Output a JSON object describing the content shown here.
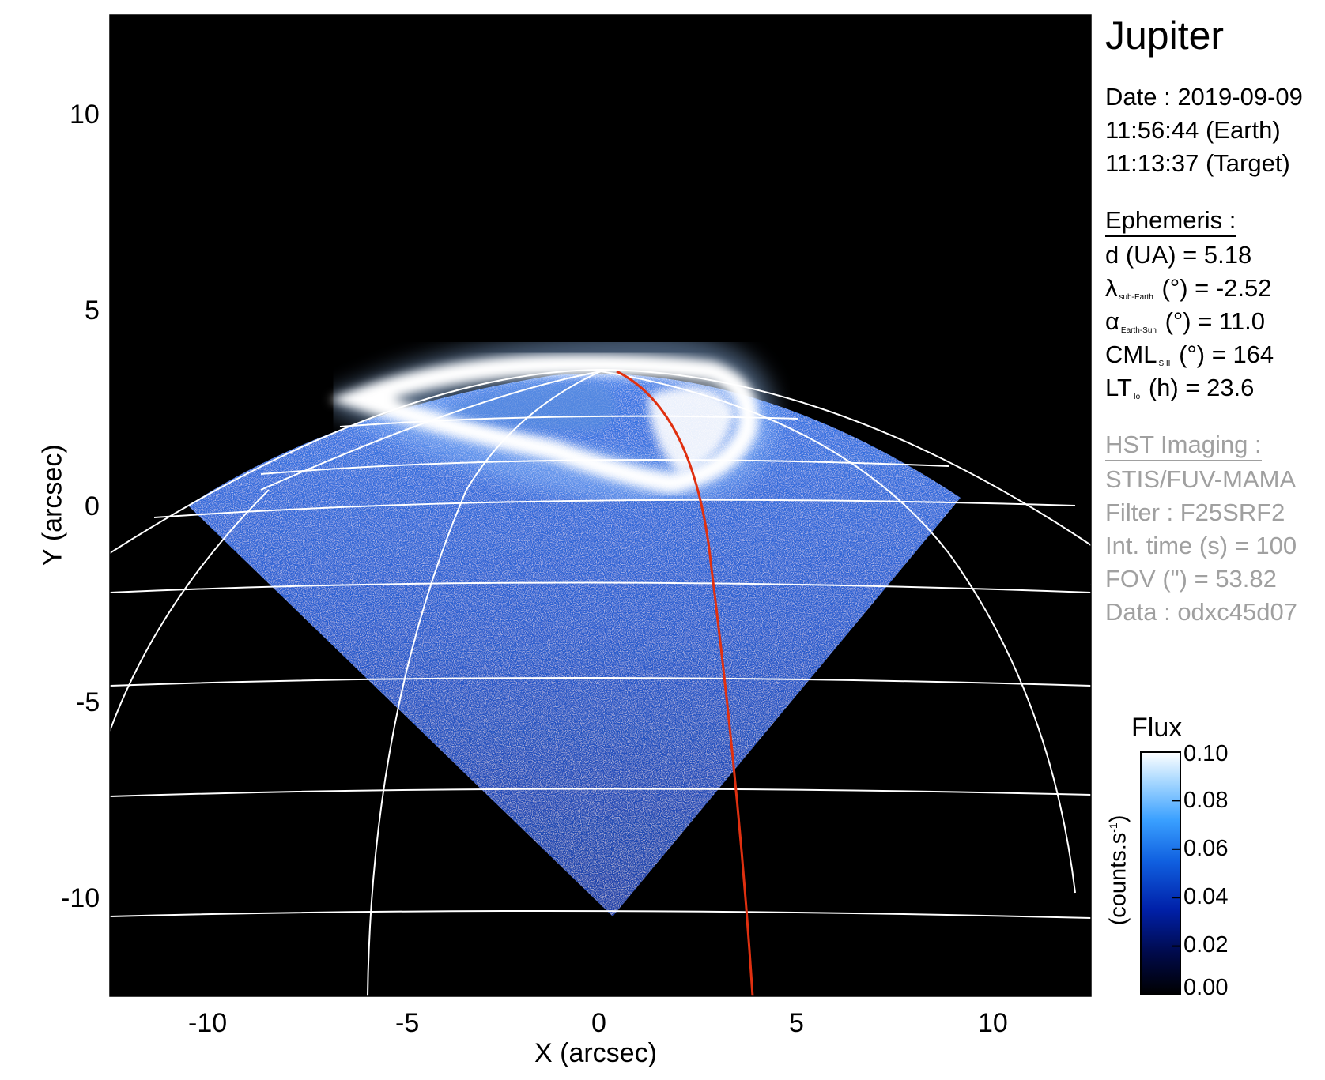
{
  "panel": {
    "title": "Jupiter",
    "date_line": "Date : 2019-09-09",
    "earth_time": "11:56:44 (Earth)",
    "target_time": "11:13:37 (Target)",
    "ephemeris_heading": "Ephemeris :",
    "distance_line": "d (UA)    = 5.18",
    "lambda_symbol": "λ",
    "lambda_sub": "sub-Earth",
    "lambda_value": " (°) = -2.52",
    "alpha_symbol": "α",
    "alpha_sub": "Earth-Sun",
    "alpha_value": " (°) = 11.0",
    "cml_symbol": "CML",
    "cml_sub": "SIII",
    "cml_value": " (°) = 164",
    "lt_symbol": "LT",
    "lt_sub": "Io",
    "lt_value": " (h) = 23.6",
    "hst_heading": "HST Imaging :",
    "instrument": "STIS/FUV-MAMA",
    "filter": "Filter : F25SRF2",
    "int_time": "Int. time (s) = 100",
    "fov": "FOV (\") = 53.82",
    "dataset": "Data : odxc45d07"
  },
  "axes": {
    "x_label": "X (arcsec)",
    "y_label": "Y (arcsec)",
    "x_ticks": [
      "-10",
      "-5",
      "0",
      "5",
      "10"
    ],
    "y_ticks": [
      "10",
      "5",
      "0",
      "-5",
      "-10"
    ]
  },
  "colorbar": {
    "title": "Flux",
    "unit_label": "(counts.s",
    "unit_sup": "-1",
    "unit_close": ")",
    "ticks": [
      "0.10",
      "0.08",
      "0.06",
      "0.04",
      "0.02",
      "0.00"
    ],
    "colors": [
      "#000000",
      "#000a4a",
      "#0020a8",
      "#1060e0",
      "#3aa0ff",
      "#a8d8ff",
      "#ffffff"
    ]
  },
  "colors": {
    "background_sky": "#000000",
    "emission_blue": "#1848c8",
    "aurora": "#ffffff",
    "grid": "#ffffff",
    "footprint_line": "#e03010"
  }
}
